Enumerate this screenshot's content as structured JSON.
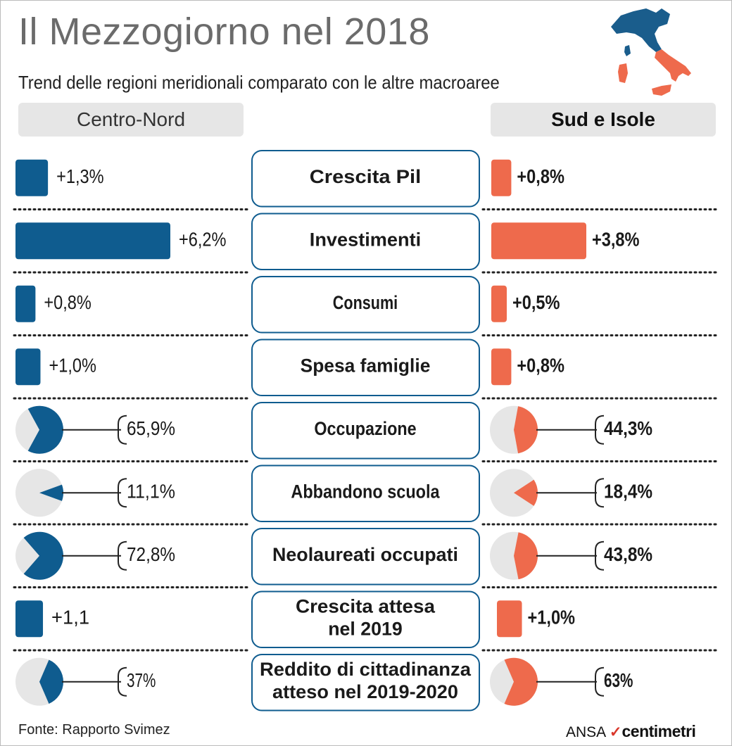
{
  "title": "Il Mezzogiorno nel 2018",
  "subtitle": "Trend delle regioni meridionali comparato con le altre macroaree",
  "left_header": "Centro-Nord",
  "right_header": "Sud e Isole",
  "source": "Fonte: Rapporto Svimez",
  "brand": {
    "agency": "ANSA",
    "mark": "✓",
    "service": "centimetri"
  },
  "colors": {
    "centro_nord": "#0f5c8f",
    "sud": "#ee6a4c",
    "pie_bg": "#e6e6e6",
    "map_north": "#1a5d8c",
    "map_south": "#ee6a4c"
  },
  "chart_data": {
    "type": "comparison",
    "series": [
      {
        "name": "Centro-Nord"
      },
      {
        "name": "Sud e Isole"
      }
    ],
    "rows": [
      {
        "label": [
          "Crescita Pil"
        ],
        "kind": "bar",
        "centro_nord": 1.3,
        "sud": 0.8,
        "centro_nord_label": "+1,3%",
        "sud_label": "+0,8%"
      },
      {
        "label": [
          "Investimenti"
        ],
        "kind": "bar",
        "centro_nord": 6.2,
        "sud": 3.8,
        "centro_nord_label": "+6,2%",
        "sud_label": "+3,8%"
      },
      {
        "label": [
          "Consumi"
        ],
        "kind": "bar",
        "centro_nord": 0.8,
        "sud": 0.5,
        "centro_nord_label": "+0,8%",
        "sud_label": "+0,5%"
      },
      {
        "label": [
          "Spesa famiglie"
        ],
        "kind": "bar",
        "centro_nord": 1.0,
        "sud": 0.8,
        "centro_nord_label": "+1,0%",
        "sud_label": "+0,8%"
      },
      {
        "label": [
          "Occupazione"
        ],
        "kind": "pie",
        "centro_nord": 65.9,
        "sud": 44.3,
        "centro_nord_label": "65,9%",
        "sud_label": "44,3%"
      },
      {
        "label": [
          "Abbandono scuola"
        ],
        "kind": "pie",
        "centro_nord": 11.1,
        "sud": 18.4,
        "centro_nord_label": "11,1%",
        "sud_label": "18,4%"
      },
      {
        "label": [
          "Neolaureati occupati"
        ],
        "kind": "pie",
        "centro_nord": 72.8,
        "sud": 43.8,
        "centro_nord_label": "72,8%",
        "sud_label": "43,8%"
      },
      {
        "label": [
          "Crescita attesa",
          "nel 2019"
        ],
        "kind": "bar",
        "centro_nord": 1.1,
        "sud": 1.0,
        "centro_nord_label": "+1,1",
        "sud_label": "+1,0%"
      },
      {
        "label": [
          "Reddito di cittadinanza",
          "atteso nel 2019-2020"
        ],
        "kind": "pie",
        "centro_nord": 37,
        "sud": 63,
        "centro_nord_label": "37%",
        "sud_label": "63%"
      }
    ]
  }
}
